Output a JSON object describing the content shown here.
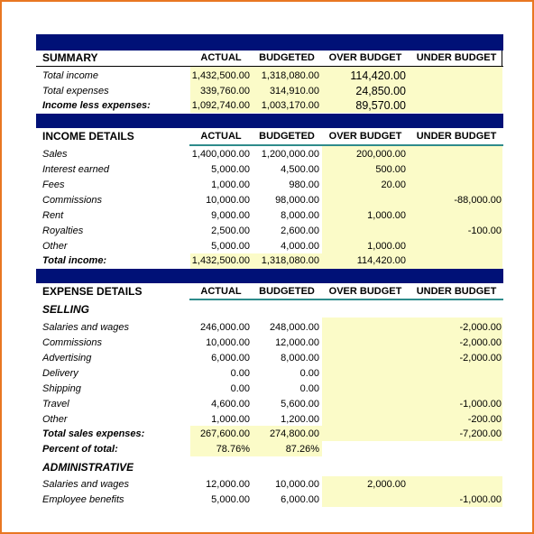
{
  "headers": {
    "actual": "ACTUAL",
    "budgeted": "BUDGETED",
    "over": "OVER BUDGET",
    "under": "UNDER BUDGET"
  },
  "summary": {
    "title": "SUMMARY",
    "rows": [
      {
        "label": "Total income",
        "actual": "1,432,500.00",
        "budgeted": "1,318,080.00",
        "over": "114,420.00",
        "under": ""
      },
      {
        "label": "Total expenses",
        "actual": "339,760.00",
        "budgeted": "314,910.00",
        "over": "24,850.00",
        "under": ""
      },
      {
        "label": "Income less expenses:",
        "actual": "1,092,740.00",
        "budgeted": "1,003,170.00",
        "over": "89,570.00",
        "under": ""
      }
    ]
  },
  "income": {
    "title": "INCOME DETAILS",
    "rows": [
      {
        "label": "Sales",
        "actual": "1,400,000.00",
        "budgeted": "1,200,000.00",
        "over": "200,000.00",
        "under": ""
      },
      {
        "label": "Interest earned",
        "actual": "5,000.00",
        "budgeted": "4,500.00",
        "over": "500.00",
        "under": ""
      },
      {
        "label": "Fees",
        "actual": "1,000.00",
        "budgeted": "980.00",
        "over": "20.00",
        "under": ""
      },
      {
        "label": "Commissions",
        "actual": "10,000.00",
        "budgeted": "98,000.00",
        "over": "",
        "under": "-88,000.00"
      },
      {
        "label": "Rent",
        "actual": "9,000.00",
        "budgeted": "8,000.00",
        "over": "1,000.00",
        "under": ""
      },
      {
        "label": "Royalties",
        "actual": "2,500.00",
        "budgeted": "2,600.00",
        "over": "",
        "under": "-100.00"
      },
      {
        "label": "Other",
        "actual": "5,000.00",
        "budgeted": "4,000.00",
        "over": "1,000.00",
        "under": ""
      }
    ],
    "total": {
      "label": "Total income:",
      "actual": "1,432,500.00",
      "budgeted": "1,318,080.00",
      "over": "114,420.00",
      "under": ""
    }
  },
  "expense": {
    "title": "EXPENSE DETAILS",
    "selling_title": "SELLING",
    "selling_rows": [
      {
        "label": "Salaries and wages",
        "actual": "246,000.00",
        "budgeted": "248,000.00",
        "over": "",
        "under": "-2,000.00"
      },
      {
        "label": "Commissions",
        "actual": "10,000.00",
        "budgeted": "12,000.00",
        "over": "",
        "under": "-2,000.00"
      },
      {
        "label": "Advertising",
        "actual": "6,000.00",
        "budgeted": "8,000.00",
        "over": "",
        "under": "-2,000.00"
      },
      {
        "label": "Delivery",
        "actual": "0.00",
        "budgeted": "0.00",
        "over": "",
        "under": ""
      },
      {
        "label": "Shipping",
        "actual": "0.00",
        "budgeted": "0.00",
        "over": "",
        "under": ""
      },
      {
        "label": "Travel",
        "actual": "4,600.00",
        "budgeted": "5,600.00",
        "over": "",
        "under": "-1,000.00"
      },
      {
        "label": "Other",
        "actual": "1,000.00",
        "budgeted": "1,200.00",
        "over": "",
        "under": "-200.00"
      }
    ],
    "selling_total": {
      "label": "Total sales expenses:",
      "actual": "267,600.00",
      "budgeted": "274,800.00",
      "over": "",
      "under": "-7,200.00"
    },
    "selling_percent": {
      "label": "Percent of total:",
      "actual": "78.76%",
      "budgeted": "87.26%"
    },
    "admin_title": "ADMINISTRATIVE",
    "admin_rows": [
      {
        "label": "Salaries and wages",
        "actual": "12,000.00",
        "budgeted": "10,000.00",
        "over": "2,000.00",
        "under": ""
      },
      {
        "label": "Employee benefits",
        "actual": "5,000.00",
        "budgeted": "6,000.00",
        "over": "",
        "under": "-1,000.00"
      }
    ]
  },
  "colors": {
    "header_bar": "#001177",
    "accent_rule": "#2e8b8b",
    "highlight": "#fbfbc8",
    "frame": "#e87722"
  }
}
